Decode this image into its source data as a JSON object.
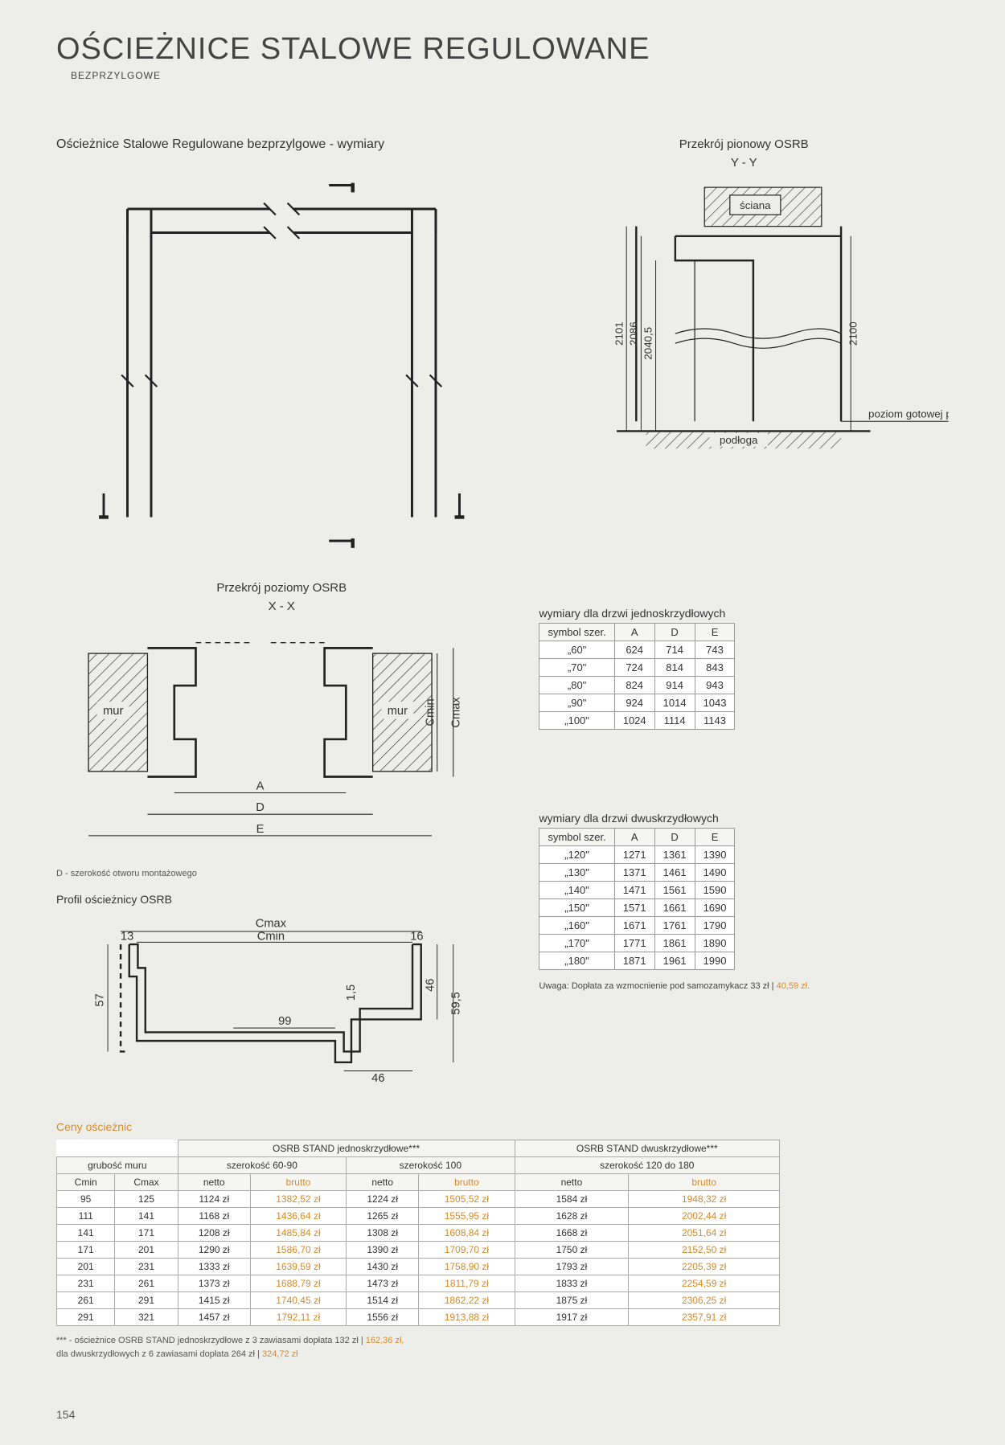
{
  "page_title": "OŚCIEŻNICE STALOWE REGULOWANE",
  "subtitle": "BEZPRZYLGOWE",
  "page_number": "154",
  "main": {
    "left_heading": "Ościeżnice Stalowe Regulowane bezprzylgowe - wymiary",
    "right_heading": "Przekrój pionowy OSRB",
    "right_axis": "Y - Y",
    "right_labels": {
      "sciana": "ściana",
      "podloga": "podłoga",
      "poziom": "poziom gotowej podłogi",
      "d1": "2101",
      "d2": "2086",
      "d3": "2040,5",
      "d4": "2100"
    }
  },
  "horiz": {
    "heading": "Przekrój poziomy OSRB",
    "axis": "X - X",
    "mur": "mur",
    "dims": {
      "a": "A",
      "d": "D",
      "e": "E",
      "cmin": "Cmin",
      "cmax": "Cmax"
    },
    "note_d": "D - szerokość otworu montażowego"
  },
  "profile": {
    "heading": "Profil ościeżnicy OSRB",
    "dims": {
      "cmax": "Cmax",
      "cmin": "Cmin",
      "n13": "13",
      "n16": "16",
      "n57": "57",
      "n99": "99",
      "n46a": "46",
      "n46b": "46",
      "n1_5": "1,5",
      "n59_5": "59,5"
    }
  },
  "table_single": {
    "title": "wymiary dla drzwi jednoskrzydłowych",
    "columns": [
      "symbol szer.",
      "A",
      "D",
      "E"
    ],
    "rows": [
      [
        "„60\"",
        "624",
        "714",
        "743"
      ],
      [
        "„70\"",
        "724",
        "814",
        "843"
      ],
      [
        "„80\"",
        "824",
        "914",
        "943"
      ],
      [
        "„90\"",
        "924",
        "1014",
        "1043"
      ],
      [
        "„100\"",
        "1024",
        "1114",
        "1143"
      ]
    ]
  },
  "table_double": {
    "title": "wymiary dla drzwi dwuskrzydłowych",
    "columns": [
      "symbol szer.",
      "A",
      "D",
      "E"
    ],
    "rows": [
      [
        "„120\"",
        "1271",
        "1361",
        "1390"
      ],
      [
        "„130\"",
        "1371",
        "1461",
        "1490"
      ],
      [
        "„140\"",
        "1471",
        "1561",
        "1590"
      ],
      [
        "„150\"",
        "1571",
        "1661",
        "1690"
      ],
      [
        "„160\"",
        "1671",
        "1761",
        "1790"
      ],
      [
        "„170\"",
        "1771",
        "1861",
        "1890"
      ],
      [
        "„180\"",
        "1871",
        "1961",
        "1990"
      ]
    ]
  },
  "uwaga": {
    "text": "Uwaga: Dopłata za wzmocnienie pod samozamykacz 33 zł | ",
    "price": "40,59 zł."
  },
  "prices": {
    "title": "Ceny ościeżnic",
    "header_group_1": "OSRB STAND jednoskrzydłowe***",
    "header_group_2": "OSRB STAND dwuskrzydłowe***",
    "header_grubosc": "grubość muru",
    "header_width_6090": "szerokość 60-90",
    "header_width_100": "szerokość 100",
    "header_width_120180": "szerokość 120 do 180",
    "cmin": "Cmin",
    "cmax": "Cmax",
    "netto": "netto",
    "brutto": "brutto",
    "rows": [
      [
        "95",
        "125",
        "1124 zł",
        "1382,52 zł",
        "1224 zł",
        "1505,52 zł",
        "1584 zł",
        "1948,32 zł"
      ],
      [
        "111",
        "141",
        "1168 zł",
        "1436,64 zł",
        "1265 zł",
        "1555,95 zł",
        "1628 zł",
        "2002,44 zł"
      ],
      [
        "141",
        "171",
        "1208 zł",
        "1485,84 zł",
        "1308 zł",
        "1608,84 zł",
        "1668 zł",
        "2051,64 zł"
      ],
      [
        "171",
        "201",
        "1290 zł",
        "1586,70 zł",
        "1390 zł",
        "1709,70 zł",
        "1750 zł",
        "2152,50 zł"
      ],
      [
        "201",
        "231",
        "1333 zł",
        "1639,59 zł",
        "1430 zł",
        "1758,90 zł",
        "1793 zł",
        "2205,39 zł"
      ],
      [
        "231",
        "261",
        "1373 zł",
        "1688,79 zł",
        "1473 zł",
        "1811,79 zł",
        "1833 zł",
        "2254,59 zł"
      ],
      [
        "261",
        "291",
        "1415 zł",
        "1740,45 zł",
        "1514 zł",
        "1862,22 zł",
        "1875 zł",
        "2306,25 zł"
      ],
      [
        "291",
        "321",
        "1457 zł",
        "1792,11 zł",
        "1556 zł",
        "1913,88 zł",
        "1917 zł",
        "2357,91 zł"
      ]
    ]
  },
  "footnote": {
    "line1_a": "*** - ościeżnice OSRB STAND jednoskrzydłowe z 3 zawiasami dopłata 132 zł | ",
    "line1_b": "162,36 zł,",
    "line2_a": "dla dwuskrzydłowych z 6 zawiasami dopłata 264 zł | ",
    "line2_b": "324,72 zł"
  },
  "colors": {
    "orange": "#d88a2a",
    "bg": "#ededea",
    "line": "#222"
  }
}
